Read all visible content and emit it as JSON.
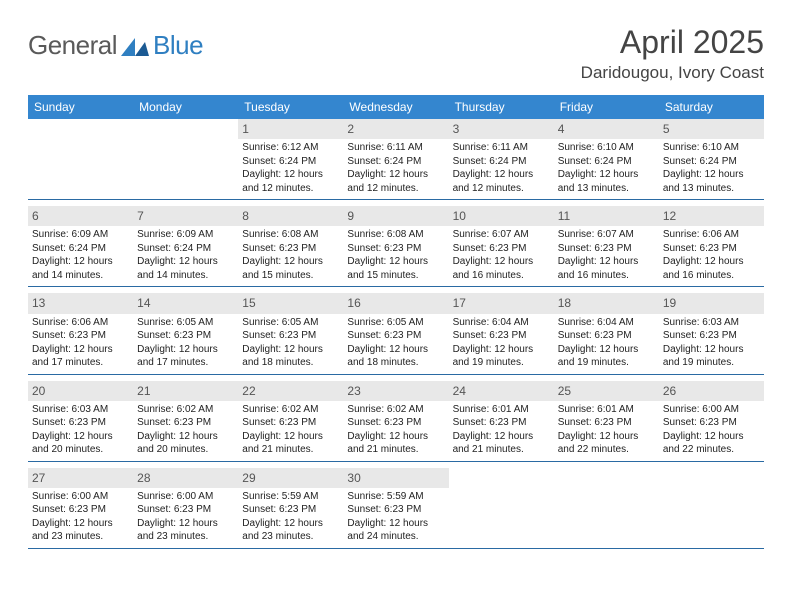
{
  "logo": {
    "text1": "General",
    "text2": "Blue",
    "mark_color": "#2f7fc1"
  },
  "title": "April 2025",
  "subtitle": "Daridougou, Ivory Coast",
  "header_bar_color": "#3486cf",
  "week_separator_color": "#2a6aa3",
  "day_num_bg": "#e8e8e8",
  "days_of_week": [
    "Sunday",
    "Monday",
    "Tuesday",
    "Wednesday",
    "Thursday",
    "Friday",
    "Saturday"
  ],
  "weeks": [
    [
      {
        "n": "",
        "empty": true
      },
      {
        "n": "",
        "empty": true
      },
      {
        "n": "1",
        "sr": "6:12 AM",
        "ss": "6:24 PM",
        "dl": "12 hours and 12 minutes."
      },
      {
        "n": "2",
        "sr": "6:11 AM",
        "ss": "6:24 PM",
        "dl": "12 hours and 12 minutes."
      },
      {
        "n": "3",
        "sr": "6:11 AM",
        "ss": "6:24 PM",
        "dl": "12 hours and 12 minutes."
      },
      {
        "n": "4",
        "sr": "6:10 AM",
        "ss": "6:24 PM",
        "dl": "12 hours and 13 minutes."
      },
      {
        "n": "5",
        "sr": "6:10 AM",
        "ss": "6:24 PM",
        "dl": "12 hours and 13 minutes."
      }
    ],
    [
      {
        "n": "6",
        "sr": "6:09 AM",
        "ss": "6:24 PM",
        "dl": "12 hours and 14 minutes."
      },
      {
        "n": "7",
        "sr": "6:09 AM",
        "ss": "6:24 PM",
        "dl": "12 hours and 14 minutes."
      },
      {
        "n": "8",
        "sr": "6:08 AM",
        "ss": "6:23 PM",
        "dl": "12 hours and 15 minutes."
      },
      {
        "n": "9",
        "sr": "6:08 AM",
        "ss": "6:23 PM",
        "dl": "12 hours and 15 minutes."
      },
      {
        "n": "10",
        "sr": "6:07 AM",
        "ss": "6:23 PM",
        "dl": "12 hours and 16 minutes."
      },
      {
        "n": "11",
        "sr": "6:07 AM",
        "ss": "6:23 PM",
        "dl": "12 hours and 16 minutes."
      },
      {
        "n": "12",
        "sr": "6:06 AM",
        "ss": "6:23 PM",
        "dl": "12 hours and 16 minutes."
      }
    ],
    [
      {
        "n": "13",
        "sr": "6:06 AM",
        "ss": "6:23 PM",
        "dl": "12 hours and 17 minutes."
      },
      {
        "n": "14",
        "sr": "6:05 AM",
        "ss": "6:23 PM",
        "dl": "12 hours and 17 minutes."
      },
      {
        "n": "15",
        "sr": "6:05 AM",
        "ss": "6:23 PM",
        "dl": "12 hours and 18 minutes."
      },
      {
        "n": "16",
        "sr": "6:05 AM",
        "ss": "6:23 PM",
        "dl": "12 hours and 18 minutes."
      },
      {
        "n": "17",
        "sr": "6:04 AM",
        "ss": "6:23 PM",
        "dl": "12 hours and 19 minutes."
      },
      {
        "n": "18",
        "sr": "6:04 AM",
        "ss": "6:23 PM",
        "dl": "12 hours and 19 minutes."
      },
      {
        "n": "19",
        "sr": "6:03 AM",
        "ss": "6:23 PM",
        "dl": "12 hours and 19 minutes."
      }
    ],
    [
      {
        "n": "20",
        "sr": "6:03 AM",
        "ss": "6:23 PM",
        "dl": "12 hours and 20 minutes."
      },
      {
        "n": "21",
        "sr": "6:02 AM",
        "ss": "6:23 PM",
        "dl": "12 hours and 20 minutes."
      },
      {
        "n": "22",
        "sr": "6:02 AM",
        "ss": "6:23 PM",
        "dl": "12 hours and 21 minutes."
      },
      {
        "n": "23",
        "sr": "6:02 AM",
        "ss": "6:23 PM",
        "dl": "12 hours and 21 minutes."
      },
      {
        "n": "24",
        "sr": "6:01 AM",
        "ss": "6:23 PM",
        "dl": "12 hours and 21 minutes."
      },
      {
        "n": "25",
        "sr": "6:01 AM",
        "ss": "6:23 PM",
        "dl": "12 hours and 22 minutes."
      },
      {
        "n": "26",
        "sr": "6:00 AM",
        "ss": "6:23 PM",
        "dl": "12 hours and 22 minutes."
      }
    ],
    [
      {
        "n": "27",
        "sr": "6:00 AM",
        "ss": "6:23 PM",
        "dl": "12 hours and 23 minutes."
      },
      {
        "n": "28",
        "sr": "6:00 AM",
        "ss": "6:23 PM",
        "dl": "12 hours and 23 minutes."
      },
      {
        "n": "29",
        "sr": "5:59 AM",
        "ss": "6:23 PM",
        "dl": "12 hours and 23 minutes."
      },
      {
        "n": "30",
        "sr": "5:59 AM",
        "ss": "6:23 PM",
        "dl": "12 hours and 24 minutes."
      },
      {
        "n": "",
        "empty": true
      },
      {
        "n": "",
        "empty": true
      },
      {
        "n": "",
        "empty": true
      }
    ]
  ],
  "labels": {
    "sunrise": "Sunrise:",
    "sunset": "Sunset:",
    "daylight": "Daylight:"
  }
}
